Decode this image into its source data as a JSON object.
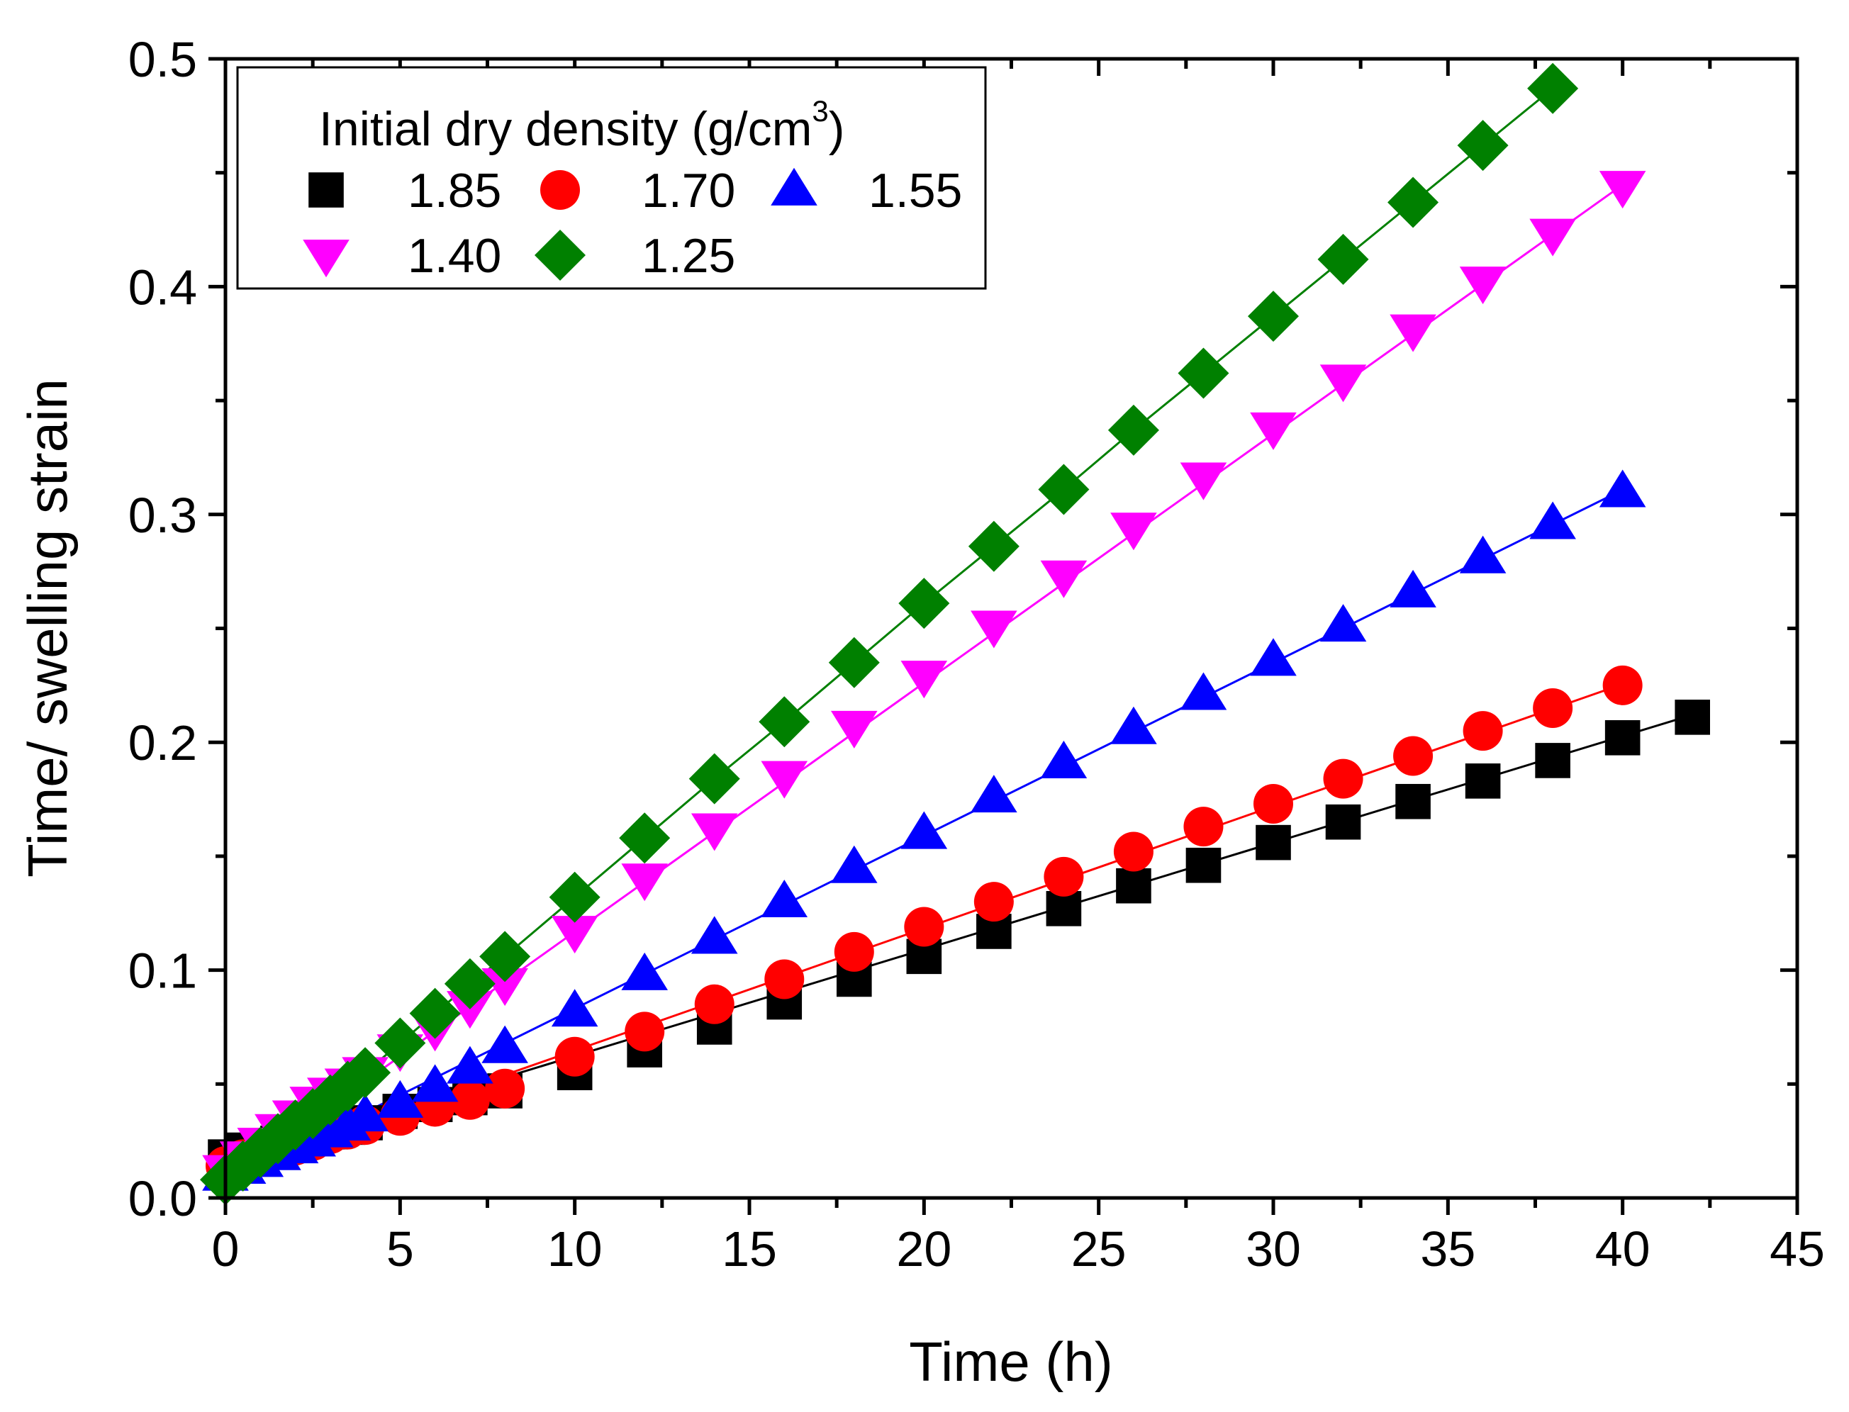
{
  "chart_data": {
    "type": "scatter",
    "xlabel": "Time (h)",
    "ylabel": "Time/ swelling strain",
    "xlim": [
      0,
      45
    ],
    "ylim": [
      0,
      0.5
    ],
    "xticks": [
      "0",
      "5",
      "10",
      "15",
      "20",
      "25",
      "30",
      "35",
      "40",
      "45"
    ],
    "yticks": [
      "0.0",
      "0.1",
      "0.2",
      "0.3",
      "0.4",
      "0.5"
    ],
    "grid": false,
    "legend": {
      "position": "top-left",
      "title_main": "Initial dry density (g/cm",
      "title_sup": "3",
      "title_end": ")"
    },
    "series": [
      {
        "name": "1.85",
        "marker": "square",
        "color": "#000000",
        "line_color": "#000000",
        "x": [
          0,
          0.5,
          1,
          1.5,
          2,
          2.5,
          3,
          3.5,
          4,
          5,
          6,
          7,
          8,
          10,
          12,
          14,
          16,
          18,
          20,
          22,
          24,
          26,
          28,
          30,
          32,
          34,
          36,
          38,
          40,
          42
        ],
        "y": [
          0.018,
          0.021,
          0.022,
          0.024,
          0.026,
          0.027,
          0.029,
          0.031,
          0.033,
          0.038,
          0.041,
          0.044,
          0.047,
          0.055,
          0.065,
          0.075,
          0.086,
          0.096,
          0.106,
          0.117,
          0.127,
          0.137,
          0.146,
          0.156,
          0.165,
          0.174,
          0.183,
          0.192,
          0.202,
          0.211
        ],
        "fit": [
          0.0155,
          0.00468
        ]
      },
      {
        "name": "1.70",
        "marker": "circle",
        "color": "#ff0000",
        "line_color": "#ff0000",
        "x": [
          0,
          0.5,
          1,
          1.5,
          2,
          2.5,
          3,
          3.5,
          4,
          5,
          6,
          7,
          8,
          10,
          12,
          14,
          16,
          18,
          20,
          22,
          24,
          26,
          28,
          30,
          32,
          34,
          36,
          38,
          40
        ],
        "y": [
          0.014,
          0.017,
          0.019,
          0.021,
          0.023,
          0.025,
          0.028,
          0.03,
          0.032,
          0.036,
          0.04,
          0.043,
          0.048,
          0.062,
          0.073,
          0.085,
          0.096,
          0.108,
          0.119,
          0.13,
          0.141,
          0.152,
          0.163,
          0.173,
          0.184,
          0.194,
          0.205,
          0.215,
          0.225
        ],
        "fit": [
          0.0111,
          0.00536
        ]
      },
      {
        "name": "1.55",
        "marker": "triangle-up",
        "color": "#0000ff",
        "line_color": "#0000ff",
        "x": [
          0,
          0.5,
          1,
          1.5,
          2,
          2.5,
          3,
          3.5,
          4,
          5,
          6,
          7,
          8,
          10,
          12,
          14,
          16,
          18,
          20,
          22,
          24,
          26,
          28,
          30,
          32,
          34,
          36,
          38,
          40
        ],
        "y": [
          0.01,
          0.013,
          0.016,
          0.019,
          0.022,
          0.025,
          0.029,
          0.032,
          0.036,
          0.042,
          0.049,
          0.057,
          0.066,
          0.082,
          0.098,
          0.114,
          0.13,
          0.145,
          0.16,
          0.176,
          0.191,
          0.206,
          0.221,
          0.236,
          0.251,
          0.266,
          0.281,
          0.296,
          0.31
        ],
        "fit": [
          0.0072,
          0.00759
        ]
      },
      {
        "name": "1.40",
        "marker": "triangle-down",
        "color": "#ff00ff",
        "line_color": "#ff00ff",
        "x": [
          0,
          0.5,
          1,
          1.5,
          2,
          2.5,
          3,
          3.5,
          4,
          5,
          6,
          7,
          8,
          10,
          12,
          14,
          16,
          18,
          20,
          22,
          24,
          26,
          28,
          30,
          32,
          34,
          36,
          38,
          40
        ],
        "y": [
          0.012,
          0.018,
          0.024,
          0.03,
          0.036,
          0.042,
          0.046,
          0.05,
          0.055,
          0.065,
          0.074,
          0.084,
          0.094,
          0.117,
          0.14,
          0.162,
          0.185,
          0.207,
          0.229,
          0.251,
          0.273,
          0.294,
          0.316,
          0.338,
          0.359,
          0.381,
          0.402,
          0.423,
          0.444
        ],
        "fit": [
          0.0075,
          0.01093
        ]
      },
      {
        "name": "1.25",
        "marker": "diamond",
        "color": "#008000",
        "line_color": "#008000",
        "x": [
          0,
          0.5,
          1,
          1.5,
          2,
          2.5,
          3,
          3.5,
          4,
          5,
          6,
          7,
          8,
          10,
          12,
          14,
          16,
          18,
          20,
          22,
          24,
          26,
          28,
          30,
          32,
          34,
          36,
          38
        ],
        "y": [
          0.008,
          0.014,
          0.02,
          0.026,
          0.032,
          0.037,
          0.043,
          0.049,
          0.055,
          0.068,
          0.081,
          0.094,
          0.106,
          0.132,
          0.158,
          0.184,
          0.209,
          0.235,
          0.261,
          0.286,
          0.311,
          0.337,
          0.362,
          0.387,
          0.412,
          0.437,
          0.462,
          0.487
        ]
      }
    ]
  }
}
